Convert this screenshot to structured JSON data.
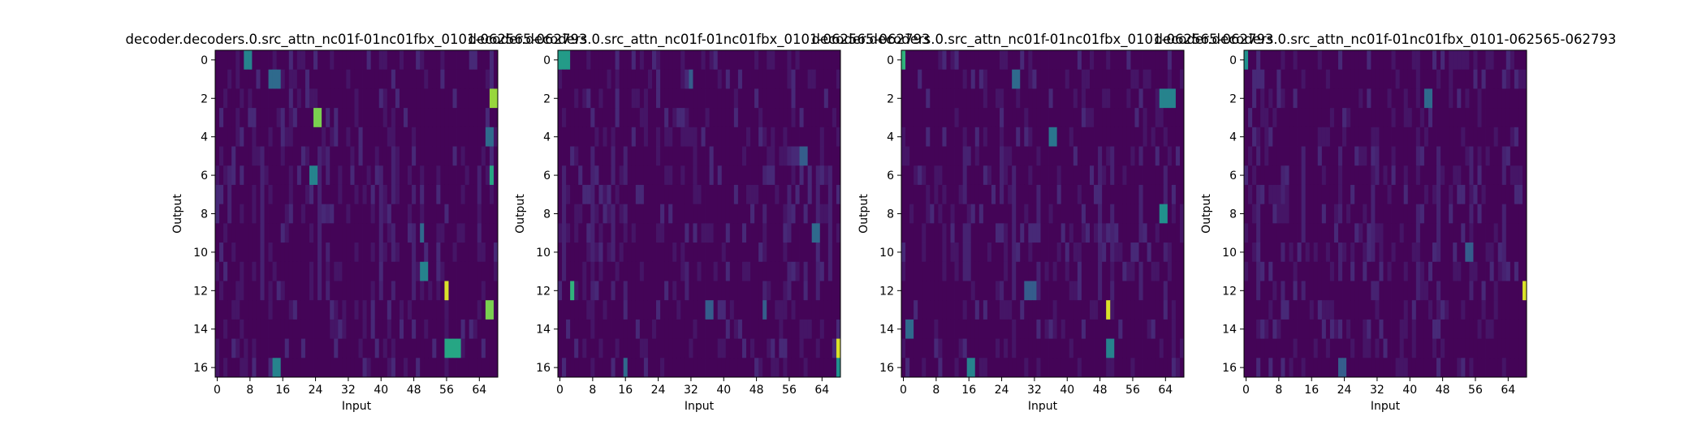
{
  "chart_data": [
    {
      "type": "heatmap",
      "title": "decoder.decoders.0.src_attn_nc01f-01nc01fbx_0101-062565-062793",
      "xlabel": "Input",
      "ylabel": "Output",
      "xticks": [
        0,
        8,
        16,
        24,
        32,
        40,
        48,
        56,
        64
      ],
      "yticks": [
        0,
        2,
        4,
        6,
        8,
        10,
        12,
        14,
        16
      ],
      "n_cols": 69,
      "n_rows": 17,
      "colormap": "viridis",
      "vmin": 0,
      "vmax": 1,
      "highlights": [
        {
          "row": 0,
          "col_start": 7,
          "col_end": 8,
          "value": 0.45
        },
        {
          "row": 1,
          "col_start": 13,
          "col_end": 15,
          "value": 0.35
        },
        {
          "row": 2,
          "col_start": 67,
          "col_end": 68,
          "value": 0.85
        },
        {
          "row": 3,
          "col_start": 24,
          "col_end": 25,
          "value": 0.8
        },
        {
          "row": 4,
          "col_start": 66,
          "col_end": 67,
          "value": 0.35
        },
        {
          "row": 6,
          "col_start": 23,
          "col_end": 24,
          "value": 0.45
        },
        {
          "row": 6,
          "col_start": 67,
          "col_end": 67,
          "value": 0.6
        },
        {
          "row": 9,
          "col_start": 50,
          "col_end": 50,
          "value": 0.35
        },
        {
          "row": 11,
          "col_start": 50,
          "col_end": 51,
          "value": 0.45
        },
        {
          "row": 12,
          "col_start": 56,
          "col_end": 56,
          "value": 0.95
        },
        {
          "row": 13,
          "col_start": 66,
          "col_end": 67,
          "value": 0.8
        },
        {
          "row": 15,
          "col_start": 56,
          "col_end": 59,
          "value": 0.6
        },
        {
          "row": 16,
          "col_start": 14,
          "col_end": 15,
          "value": 0.45
        }
      ]
    },
    {
      "type": "heatmap",
      "title": "decoder.decoders.0.src_attn_nc01f-01nc01fbx_0101-062565-062793",
      "xlabel": "Input",
      "ylabel": "Output",
      "xticks": [
        0,
        8,
        16,
        24,
        32,
        40,
        48,
        56,
        64
      ],
      "yticks": [
        0,
        2,
        4,
        6,
        8,
        10,
        12,
        14,
        16
      ],
      "n_cols": 69,
      "n_rows": 17,
      "colormap": "viridis",
      "vmin": 0,
      "vmax": 1,
      "highlights": [
        {
          "row": 0,
          "col_start": 0,
          "col_end": 2,
          "value": 0.55
        },
        {
          "row": 1,
          "col_start": 32,
          "col_end": 32,
          "value": 0.3
        },
        {
          "row": 5,
          "col_start": 59,
          "col_end": 60,
          "value": 0.3
        },
        {
          "row": 9,
          "col_start": 62,
          "col_end": 63,
          "value": 0.35
        },
        {
          "row": 12,
          "col_start": 3,
          "col_end": 3,
          "value": 0.65
        },
        {
          "row": 13,
          "col_start": 36,
          "col_end": 37,
          "value": 0.3
        },
        {
          "row": 13,
          "col_start": 50,
          "col_end": 50,
          "value": 0.3
        },
        {
          "row": 15,
          "col_start": 68,
          "col_end": 68,
          "value": 0.95
        },
        {
          "row": 16,
          "col_start": 68,
          "col_end": 68,
          "value": 0.5
        },
        {
          "row": 16,
          "col_start": 16,
          "col_end": 16,
          "value": 0.35
        }
      ]
    },
    {
      "type": "heatmap",
      "title": "decoder.decoders.0.src_attn_nc01f-01nc01fbx_0101-062565-062793",
      "xlabel": "Input",
      "ylabel": "Output",
      "xticks": [
        0,
        8,
        16,
        24,
        32,
        40,
        48,
        56,
        64
      ],
      "yticks": [
        0,
        2,
        4,
        6,
        8,
        10,
        12,
        14,
        16
      ],
      "n_cols": 69,
      "n_rows": 17,
      "colormap": "viridis",
      "vmin": 0,
      "vmax": 1,
      "highlights": [
        {
          "row": 0,
          "col_start": 0,
          "col_end": 0,
          "value": 0.65
        },
        {
          "row": 1,
          "col_start": 27,
          "col_end": 28,
          "value": 0.35
        },
        {
          "row": 2,
          "col_start": 63,
          "col_end": 66,
          "value": 0.45
        },
        {
          "row": 4,
          "col_start": 36,
          "col_end": 37,
          "value": 0.4
        },
        {
          "row": 8,
          "col_start": 63,
          "col_end": 64,
          "value": 0.5
        },
        {
          "row": 12,
          "col_start": 30,
          "col_end": 32,
          "value": 0.3
        },
        {
          "row": 13,
          "col_start": 50,
          "col_end": 50,
          "value": 0.95
        },
        {
          "row": 14,
          "col_start": 1,
          "col_end": 2,
          "value": 0.35
        },
        {
          "row": 15,
          "col_start": 50,
          "col_end": 51,
          "value": 0.45
        },
        {
          "row": 16,
          "col_start": 16,
          "col_end": 17,
          "value": 0.45
        }
      ]
    },
    {
      "type": "heatmap",
      "title": "decoder.decoders.0.src_attn_nc01f-01nc01fbx_0101-062565-062793",
      "xlabel": "Input",
      "ylabel": "Output",
      "xticks": [
        0,
        8,
        16,
        24,
        32,
        40,
        48,
        56,
        64
      ],
      "yticks": [
        0,
        2,
        4,
        6,
        8,
        10,
        12,
        14,
        16
      ],
      "n_cols": 69,
      "n_rows": 17,
      "colormap": "viridis",
      "vmin": 0,
      "vmax": 1,
      "highlights": [
        {
          "row": 0,
          "col_start": 0,
          "col_end": 0,
          "value": 0.5
        },
        {
          "row": 2,
          "col_start": 44,
          "col_end": 45,
          "value": 0.35
        },
        {
          "row": 10,
          "col_start": 54,
          "col_end": 55,
          "value": 0.3
        },
        {
          "row": 12,
          "col_start": 68,
          "col_end": 68,
          "value": 0.95
        },
        {
          "row": 16,
          "col_start": 23,
          "col_end": 24,
          "value": 0.3
        }
      ]
    }
  ]
}
